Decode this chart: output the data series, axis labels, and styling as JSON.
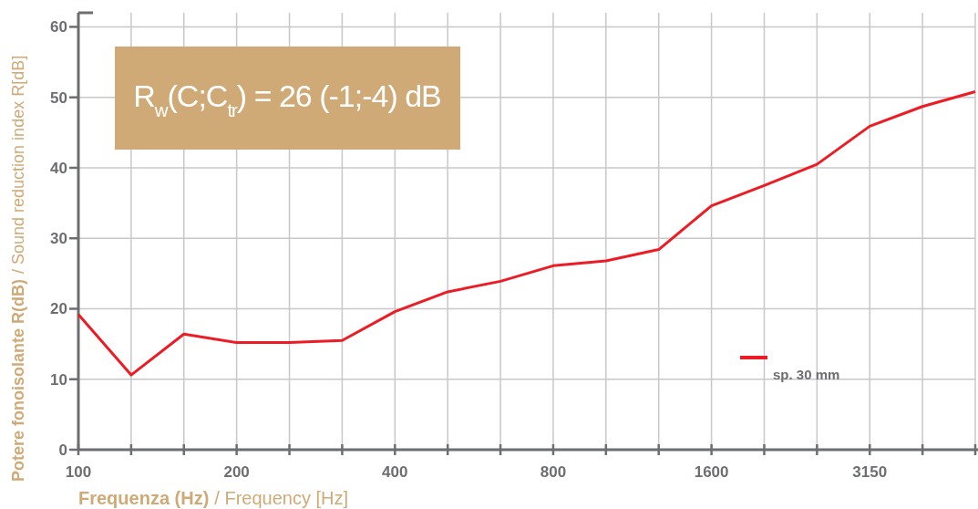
{
  "chart_data": {
    "type": "line",
    "categories": [
      "100",
      null,
      null,
      "200",
      null,
      null,
      "400",
      null,
      null,
      "800",
      null,
      null,
      "1600",
      null,
      null,
      "3150",
      null,
      null
    ],
    "series": [
      {
        "name": "sp. 30 mm",
        "color": "#ed1c24",
        "values": [
          19.2,
          10.6,
          16.4,
          15.2,
          15.2,
          15.5,
          19.6,
          22.4,
          23.9,
          26.1,
          26.8,
          28.4,
          34.6,
          37.5,
          40.5,
          45.9,
          48.7,
          50.8
        ]
      }
    ],
    "ylim": [
      0,
      62
    ],
    "yticks": [
      0,
      10,
      20,
      30,
      40,
      50,
      60
    ],
    "xlabel": "Frequenza (Hz) / Frequency [Hz]",
    "ylabel": "Potere fonoisolante R(dB) / Sound reduction index R[dB]",
    "annotations": [
      "R$_{w}$(C;C$_{tr}$) = 26 (-1;-4) dB"
    ],
    "grid": true,
    "legend": "right",
    "marker": "none",
    "line_style": "solid"
  }
}
